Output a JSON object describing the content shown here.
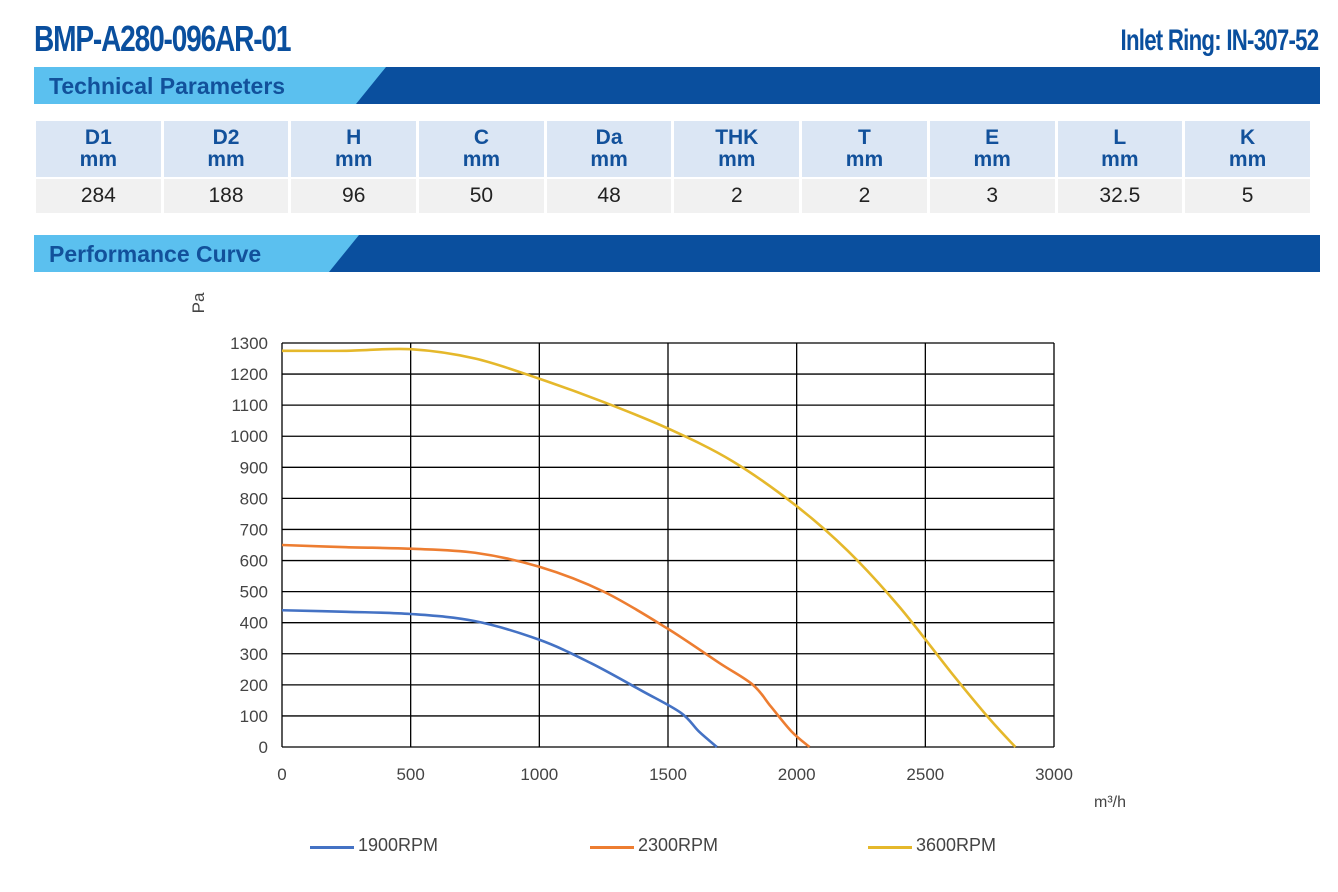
{
  "header": {
    "model": "BMP-A280-096AR-01",
    "inlet_ring": "Inlet Ring: IN-307-52"
  },
  "sections": {
    "technical": "Technical Parameters",
    "performance": "Performance Curve"
  },
  "colors": {
    "brand_dark": "#0a4f9e",
    "brand_light": "#5bc0ef",
    "header_cell": "#dbe6f4"
  },
  "params": {
    "columns": [
      {
        "name": "D1",
        "unit": "mm",
        "value": "284"
      },
      {
        "name": "D2",
        "unit": "mm",
        "value": "188"
      },
      {
        "name": "H",
        "unit": "mm",
        "value": "96"
      },
      {
        "name": "C",
        "unit": "mm",
        "value": "50"
      },
      {
        "name": "Da",
        "unit": "mm",
        "value": "48"
      },
      {
        "name": "THK",
        "unit": "mm",
        "value": "2"
      },
      {
        "name": "T",
        "unit": "mm",
        "value": "2"
      },
      {
        "name": "E",
        "unit": "mm",
        "value": "3"
      },
      {
        "name": "L",
        "unit": "mm",
        "value": "32.5"
      },
      {
        "name": "K",
        "unit": "mm",
        "value": "5"
      }
    ]
  },
  "chart_data": {
    "type": "line",
    "title": "",
    "xlabel": "m³/h",
    "ylabel": "Pa",
    "xlim": [
      0,
      3000
    ],
    "ylim": [
      0,
      1300
    ],
    "xticks": [
      "0",
      "500",
      "1000",
      "1500",
      "2000",
      "2500",
      "3000"
    ],
    "yticks": [
      "0",
      "100",
      "200",
      "300",
      "400",
      "500",
      "600",
      "700",
      "800",
      "900",
      "1000",
      "1100",
      "1200",
      "1300"
    ],
    "grid": true,
    "legend_position": "bottom",
    "series": [
      {
        "name": "1900RPM",
        "color": "#4472c4",
        "x": [
          0,
          250,
          500,
          750,
          1000,
          1200,
          1400,
          1550,
          1620,
          1690
        ],
        "y": [
          440,
          435,
          428,
          405,
          345,
          270,
          180,
          110,
          50,
          0
        ]
      },
      {
        "name": "2300RPM",
        "color": "#ed7d31",
        "x": [
          0,
          250,
          500,
          750,
          1000,
          1250,
          1500,
          1700,
          1830,
          1900,
          1980,
          2050
        ],
        "y": [
          650,
          643,
          638,
          625,
          580,
          500,
          380,
          270,
          200,
          130,
          50,
          0
        ]
      },
      {
        "name": "3600RPM",
        "color": "#e5b82b",
        "x": [
          0,
          250,
          500,
          750,
          1000,
          1250,
          1500,
          1750,
          2000,
          2200,
          2400,
          2600,
          2750,
          2850
        ],
        "y": [
          1275,
          1275,
          1280,
          1250,
          1185,
          1110,
          1025,
          920,
          775,
          630,
          450,
          240,
          90,
          0
        ]
      }
    ]
  }
}
